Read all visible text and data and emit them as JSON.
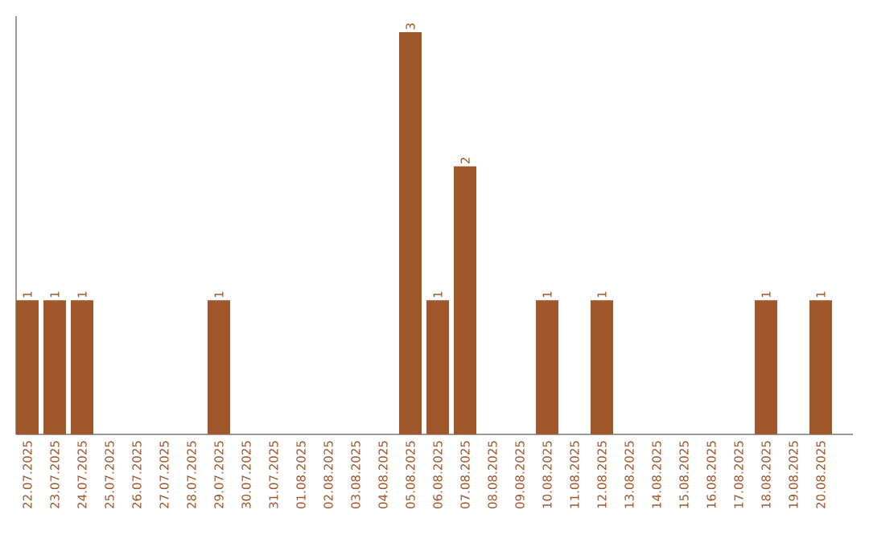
{
  "chart_data": {
    "type": "bar",
    "categories": [
      "22.07.2025",
      "23.07.2025",
      "24.07.2025",
      "25.07.2025",
      "26.07.2025",
      "27.07.2025",
      "28.07.2025",
      "29.07.2025",
      "30.07.2025",
      "31.07.2025",
      "01.08.2025",
      "02.08.2025",
      "03.08.2025",
      "04.08.2025",
      "05.08.2025",
      "06.08.2025",
      "07.08.2025",
      "08.08.2025",
      "09.08.2025",
      "10.08.2025",
      "11.08.2025",
      "12.08.2025",
      "13.08.2025",
      "14.08.2025",
      "15.08.2025",
      "16.08.2025",
      "17.08.2025",
      "18.08.2025",
      "19.08.2025",
      "20.08.2025"
    ],
    "values": [
      1,
      1,
      1,
      0,
      0,
      0,
      0,
      1,
      0,
      0,
      0,
      0,
      0,
      0,
      3,
      1,
      2,
      0,
      0,
      1,
      0,
      1,
      0,
      0,
      0,
      0,
      0,
      1,
      0,
      1
    ],
    "value_labels": [
      "1",
      "1",
      "1",
      null,
      null,
      null,
      null,
      "1",
      null,
      null,
      null,
      null,
      null,
      null,
      "3",
      "1",
      "2",
      null,
      null,
      "1",
      null,
      "1",
      null,
      null,
      null,
      null,
      null,
      "1",
      null,
      "1"
    ],
    "color": "#a0572b",
    "grid": false
  }
}
